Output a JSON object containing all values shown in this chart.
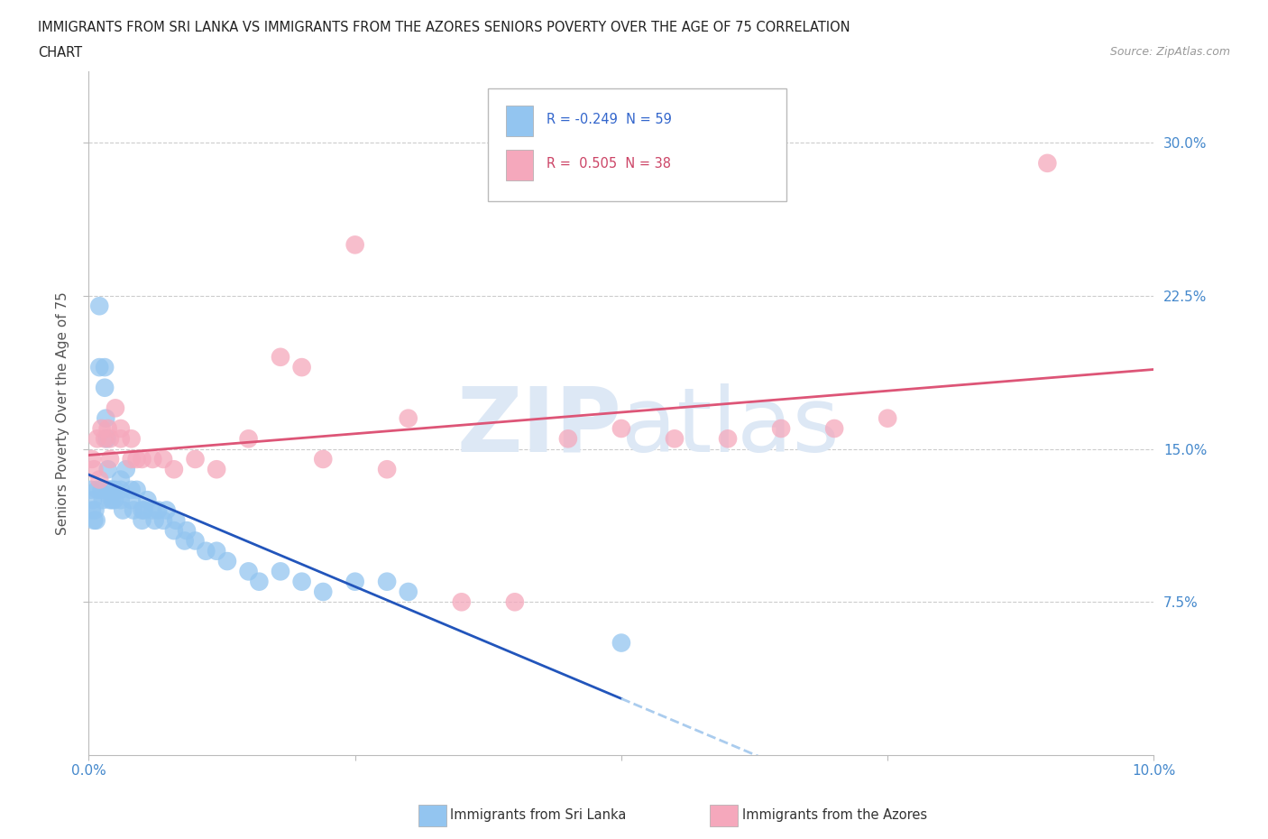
{
  "title_line1": "IMMIGRANTS FROM SRI LANKA VS IMMIGRANTS FROM THE AZORES SENIORS POVERTY OVER THE AGE OF 75 CORRELATION",
  "title_line2": "CHART",
  "source_text": "Source: ZipAtlas.com",
  "ylabel": "Seniors Poverty Over the Age of 75",
  "xmin": 0.0,
  "xmax": 0.1,
  "ymin": 0.0,
  "ymax": 0.335,
  "yticks": [
    0.075,
    0.15,
    0.225,
    0.3
  ],
  "ytick_labels": [
    "7.5%",
    "15.0%",
    "22.5%",
    "30.0%"
  ],
  "xtick_positions": [
    0.0,
    0.025,
    0.05,
    0.075,
    0.1
  ],
  "xtick_labels": [
    "0.0%",
    "",
    "",
    "",
    "10.0%"
  ],
  "grid_color": "#cccccc",
  "background_color": "#ffffff",
  "sri_lanka_color": "#93c5f0",
  "azores_color": "#f5a8bc",
  "sri_lanka_line_color": "#2255bb",
  "azores_line_color": "#dd5577",
  "sri_lanka_line_dashed_color": "#aaccee",
  "sri_lanka_R": -0.249,
  "sri_lanka_N": 59,
  "azores_R": 0.505,
  "azores_N": 38,
  "watermark_color": "#dde8f5",
  "sri_lanka_x": [
    0.0002,
    0.0003,
    0.0004,
    0.0005,
    0.0006,
    0.0007,
    0.0008,
    0.001,
    0.001,
    0.0012,
    0.0013,
    0.0015,
    0.0015,
    0.0016,
    0.0017,
    0.0018,
    0.0019,
    0.002,
    0.002,
    0.0021,
    0.0022,
    0.0023,
    0.0024,
    0.0025,
    0.003,
    0.003,
    0.003,
    0.0032,
    0.0035,
    0.004,
    0.004,
    0.0042,
    0.0045,
    0.005,
    0.005,
    0.0052,
    0.0055,
    0.006,
    0.0062,
    0.0065,
    0.007,
    0.0073,
    0.008,
    0.0082,
    0.009,
    0.0092,
    0.01,
    0.011,
    0.012,
    0.013,
    0.015,
    0.016,
    0.018,
    0.02,
    0.022,
    0.025,
    0.028,
    0.03,
    0.05
  ],
  "sri_lanka_y": [
    0.13,
    0.12,
    0.125,
    0.115,
    0.12,
    0.115,
    0.13,
    0.22,
    0.19,
    0.13,
    0.125,
    0.19,
    0.18,
    0.165,
    0.155,
    0.14,
    0.13,
    0.13,
    0.125,
    0.13,
    0.125,
    0.13,
    0.125,
    0.13,
    0.135,
    0.13,
    0.125,
    0.12,
    0.14,
    0.13,
    0.125,
    0.12,
    0.13,
    0.12,
    0.115,
    0.12,
    0.125,
    0.12,
    0.115,
    0.12,
    0.115,
    0.12,
    0.11,
    0.115,
    0.105,
    0.11,
    0.105,
    0.1,
    0.1,
    0.095,
    0.09,
    0.085,
    0.09,
    0.085,
    0.08,
    0.085,
    0.085,
    0.08,
    0.055
  ],
  "azores_x": [
    0.0003,
    0.0005,
    0.0008,
    0.001,
    0.0012,
    0.0015,
    0.0018,
    0.002,
    0.002,
    0.0025,
    0.003,
    0.003,
    0.004,
    0.004,
    0.0045,
    0.005,
    0.006,
    0.007,
    0.008,
    0.01,
    0.012,
    0.015,
    0.018,
    0.02,
    0.022,
    0.025,
    0.028,
    0.03,
    0.035,
    0.04,
    0.045,
    0.05,
    0.055,
    0.06,
    0.065,
    0.07,
    0.075,
    0.09
  ],
  "azores_y": [
    0.145,
    0.14,
    0.155,
    0.135,
    0.16,
    0.155,
    0.16,
    0.155,
    0.145,
    0.17,
    0.16,
    0.155,
    0.145,
    0.155,
    0.145,
    0.145,
    0.145,
    0.145,
    0.14,
    0.145,
    0.14,
    0.155,
    0.195,
    0.19,
    0.145,
    0.25,
    0.14,
    0.165,
    0.075,
    0.075,
    0.155,
    0.16,
    0.155,
    0.155,
    0.16,
    0.16,
    0.165,
    0.29
  ]
}
